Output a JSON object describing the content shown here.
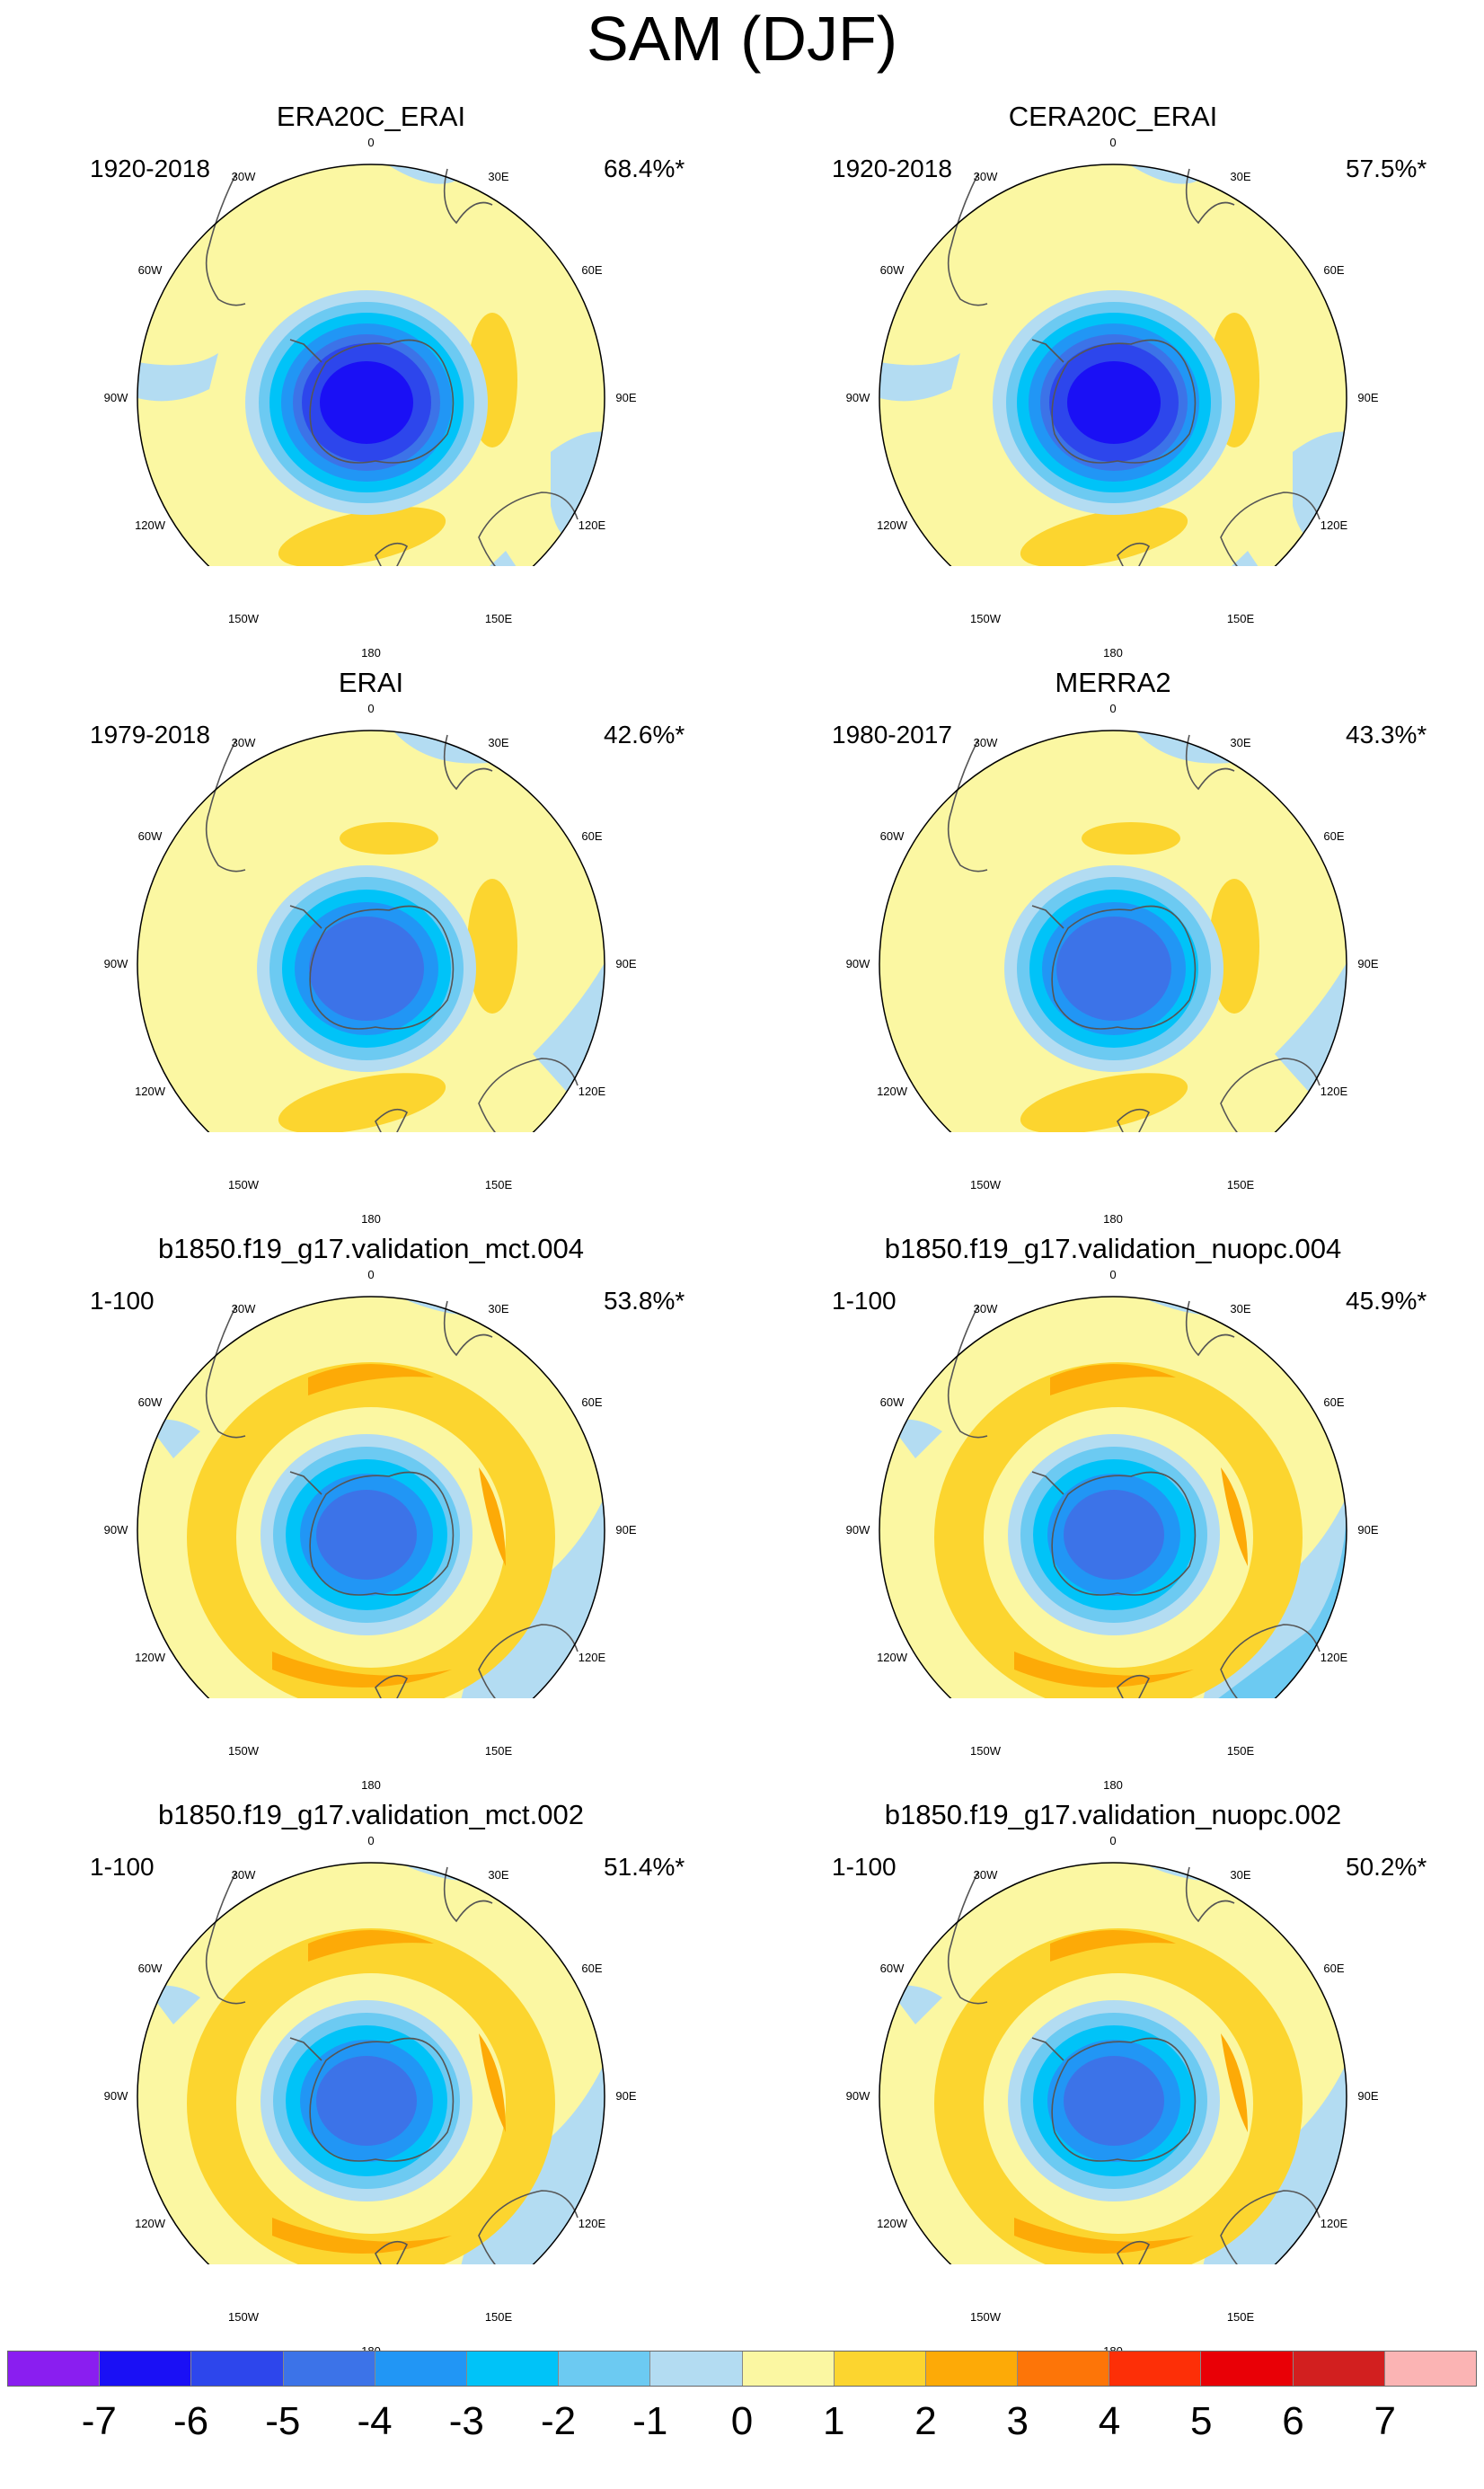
{
  "title": "SAM (DJF)",
  "longitude_labels": [
    "0",
    "30E",
    "60E",
    "90E",
    "120E",
    "150E",
    "180",
    "150W",
    "120W",
    "90W",
    "60W",
    "30W"
  ],
  "panels": [
    {
      "title": "ERA20C_ERAI",
      "period": "1920-2018",
      "percent": "68.4%*"
    },
    {
      "title": "CERA20C_ERAI",
      "period": "1920-2018",
      "percent": "57.5%*"
    },
    {
      "title": "ERAI",
      "period": "1979-2018",
      "percent": "42.6%*"
    },
    {
      "title": "MERRA2",
      "period": "1980-2017",
      "percent": "43.3%*"
    },
    {
      "title": "b1850.f19_g17.validation_mct.004",
      "period": "1-100",
      "percent": "53.8%*"
    },
    {
      "title": "b1850.f19_g17.validation_nuopc.004",
      "period": "1-100",
      "percent": "45.9%*"
    },
    {
      "title": "b1850.f19_g17.validation_mct.002",
      "period": "1-100",
      "percent": "51.4%*"
    },
    {
      "title": "b1850.f19_g17.validation_nuopc.002",
      "period": "1-100",
      "percent": "50.2%*"
    }
  ],
  "colorbar": {
    "labels": [
      "-7",
      "-6",
      "-5",
      "-4",
      "-3",
      "-2",
      "-1",
      "0",
      "1",
      "2",
      "3",
      "4",
      "5",
      "6",
      "7"
    ],
    "colors": [
      "#8a1ef0",
      "#1a10f5",
      "#2d46ec",
      "#3c73e8",
      "#2196f5",
      "#00c3f8",
      "#6ccaf2",
      "#b3dcf2",
      "#fbf7a2",
      "#fcd52f",
      "#fdaa07",
      "#fd7508",
      "#fd2f07",
      "#e90006",
      "#d21f1f",
      "#fbb4b4"
    ],
    "colors_ref": {
      "blue_deep": "#1a10f5",
      "blue1": "#2d46ec",
      "blue2": "#3c73e8",
      "blue3": "#2196f5",
      "blue4": "#00c3f8",
      "blue5": "#6ccaf2",
      "blue6": "#b3dcf2",
      "yellow": "#fbf7a2",
      "gold": "#fcd52f",
      "orange": "#fdaa07"
    }
  }
}
